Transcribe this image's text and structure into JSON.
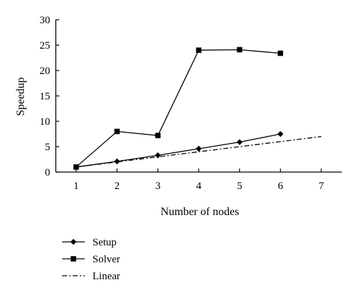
{
  "chart_data": {
    "type": "line",
    "xlabel": "Number of nodes",
    "ylabel": "Speedup",
    "xlim": [
      0.5,
      7.5
    ],
    "ylim": [
      0,
      30
    ],
    "x_ticks": [
      1,
      2,
      3,
      4,
      5,
      6,
      7
    ],
    "y_ticks": [
      0,
      5,
      10,
      15,
      20,
      25,
      30
    ],
    "grid": false,
    "legend_placement": "bottom-left",
    "series": [
      {
        "name": "Setup",
        "marker": "diamond",
        "line_style": "solid",
        "color": "#000000",
        "x": [
          1,
          2,
          3,
          4,
          5,
          6
        ],
        "values": [
          1.0,
          2.1,
          3.3,
          4.6,
          5.9,
          7.5
        ]
      },
      {
        "name": "Solver",
        "marker": "square",
        "line_style": "solid",
        "color": "#000000",
        "x": [
          1,
          2,
          3,
          4,
          5,
          6
        ],
        "values": [
          1.0,
          8.0,
          7.2,
          24.0,
          24.1,
          23.4
        ]
      },
      {
        "name": "Linear",
        "marker": "none",
        "line_style": "dash-dot",
        "color": "#000000",
        "x": [
          1,
          7
        ],
        "values": [
          1,
          7
        ]
      }
    ]
  }
}
